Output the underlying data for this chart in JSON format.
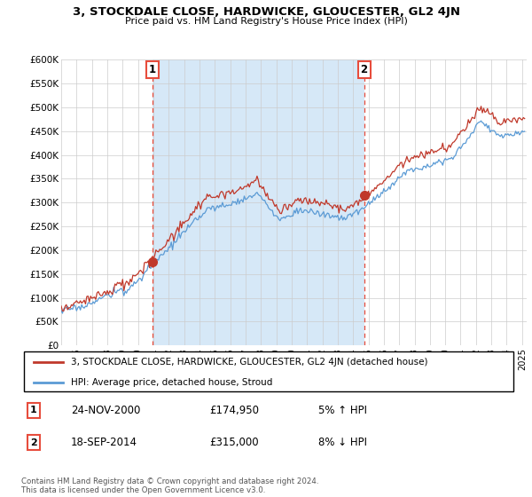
{
  "title": "3, STOCKDALE CLOSE, HARDWICKE, GLOUCESTER, GL2 4JN",
  "subtitle": "Price paid vs. HM Land Registry's House Price Index (HPI)",
  "legend_line1": "3, STOCKDALE CLOSE, HARDWICKE, GLOUCESTER, GL2 4JN (detached house)",
  "legend_line2": "HPI: Average price, detached house, Stroud",
  "sale1_date": "24-NOV-2000",
  "sale1_price": "£174,950",
  "sale1_hpi": "5% ↑ HPI",
  "sale2_date": "18-SEP-2014",
  "sale2_price": "£315,000",
  "sale2_hpi": "8% ↓ HPI",
  "footer": "Contains HM Land Registry data © Crown copyright and database right 2024.\nThis data is licensed under the Open Government Licence v3.0.",
  "hpi_color": "#5b9bd5",
  "hpi_fill_color": "#d6e8f7",
  "price_color": "#c0392b",
  "sale_vline_color": "#e74c3c",
  "sale1_x": 2000.92,
  "sale2_x": 2014.72,
  "sale1_y": 174950,
  "sale2_y": 315000,
  "ylim": [
    0,
    600000
  ],
  "xlim_start": 1995.0,
  "xlim_end": 2025.3,
  "yticks": [
    0,
    50000,
    100000,
    150000,
    200000,
    250000,
    300000,
    350000,
    400000,
    450000,
    500000,
    550000,
    600000
  ],
  "xtick_years": [
    1995,
    1996,
    1997,
    1998,
    1999,
    2000,
    2001,
    2002,
    2003,
    2004,
    2005,
    2006,
    2007,
    2008,
    2009,
    2010,
    2011,
    2012,
    2013,
    2014,
    2015,
    2016,
    2017,
    2018,
    2019,
    2020,
    2021,
    2022,
    2023,
    2024,
    2025
  ]
}
